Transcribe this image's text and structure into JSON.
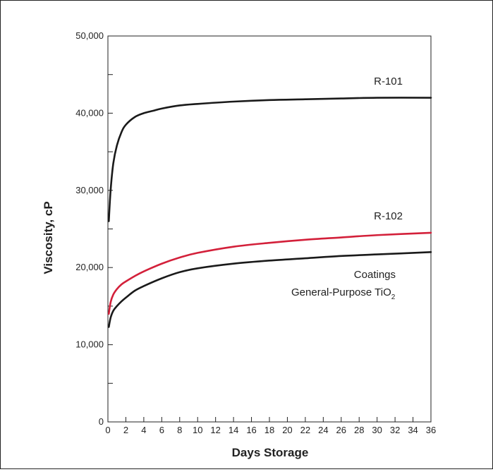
{
  "chart_data": {
    "type": "line",
    "title": "",
    "xlabel": "Days Storage",
    "ylabel": "Viscosity, cP",
    "xlim": [
      0,
      36
    ],
    "ylim": [
      0,
      50000
    ],
    "x_ticks": [
      0,
      2,
      4,
      6,
      8,
      10,
      12,
      14,
      16,
      18,
      20,
      22,
      24,
      26,
      28,
      30,
      32,
      34,
      36
    ],
    "x_tick_labels": [
      "0",
      "2",
      "4",
      "6",
      "8",
      "10",
      "12",
      "14",
      "16",
      "18",
      "20",
      "22",
      "24",
      "26",
      "28",
      "30",
      "32",
      "34",
      "36"
    ],
    "y_ticks": [
      0,
      5000,
      10000,
      15000,
      20000,
      25000,
      30000,
      35000,
      40000,
      45000,
      50000
    ],
    "y_tick_labels": [
      "0",
      "",
      "10,000",
      "",
      "20,000",
      "",
      "30,000",
      "",
      "40,000",
      "",
      "50,000"
    ],
    "grid": false,
    "series": [
      {
        "name": "R-101",
        "color": "#1a1a1a",
        "x": [
          0.1,
          0.3,
          0.6,
          1,
          1.5,
          2,
          3,
          4,
          5,
          6,
          8,
          10,
          14,
          18,
          22,
          26,
          30,
          36
        ],
        "y": [
          26000,
          30000,
          33500,
          35800,
          37500,
          38500,
          39500,
          40000,
          40300,
          40600,
          41000,
          41200,
          41500,
          41700,
          41800,
          41900,
          42000,
          42000
        ]
      },
      {
        "name": "R-102",
        "color": "#d3203a",
        "x": [
          0.1,
          0.3,
          0.6,
          1,
          1.5,
          2,
          3,
          4,
          6,
          8,
          10,
          14,
          18,
          22,
          26,
          30,
          36
        ],
        "y": [
          14000,
          15500,
          16500,
          17200,
          17800,
          18200,
          18900,
          19500,
          20500,
          21300,
          21900,
          22700,
          23200,
          23600,
          23900,
          24200,
          24500
        ]
      },
      {
        "name": "Coatings General-Purpose TiO",
        "color": "#1a1a1a",
        "x": [
          0.1,
          0.3,
          0.6,
          1,
          1.5,
          2,
          3,
          4,
          6,
          8,
          10,
          14,
          18,
          22,
          26,
          30,
          36
        ],
        "y": [
          12300,
          13500,
          14400,
          15000,
          15600,
          16100,
          17000,
          17600,
          18600,
          19400,
          19900,
          20500,
          20900,
          21200,
          21500,
          21700,
          22000
        ]
      }
    ],
    "annotations": {
      "r101": "R-101",
      "r102": "R-102",
      "gp_line1": "Coatings",
      "gp_line2": "General-Purpose TiO",
      "gp_subscript": "2"
    }
  }
}
